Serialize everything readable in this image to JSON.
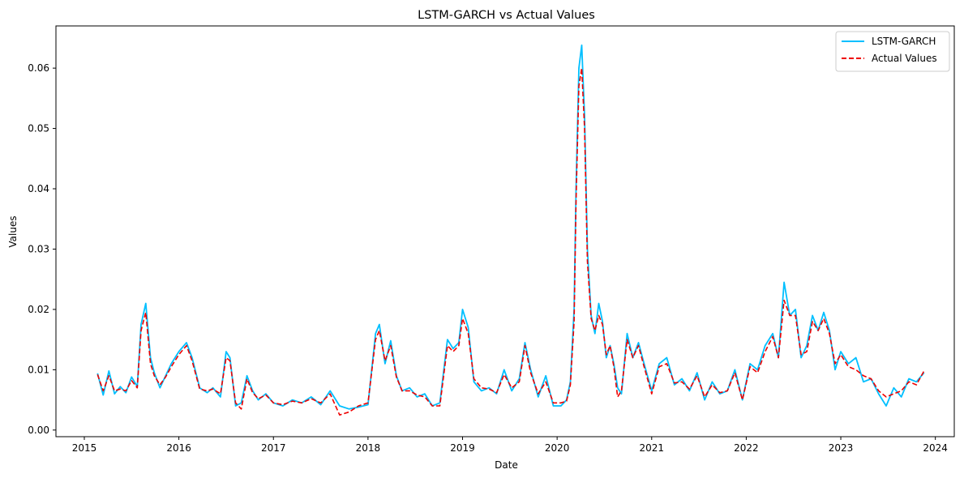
{
  "chart_data": {
    "type": "line",
    "title": "LSTM-GARCH vs Actual Values",
    "xlabel": "Date",
    "ylabel": "Values",
    "xlim": [
      2014.7,
      2024.2
    ],
    "ylim": [
      -0.0011,
      0.067
    ],
    "xticks": [
      2015,
      2016,
      2017,
      2018,
      2019,
      2020,
      2021,
      2022,
      2023,
      2024
    ],
    "xtick_labels": [
      "2015",
      "2016",
      "2017",
      "2018",
      "2019",
      "2020",
      "2021",
      "2022",
      "2023",
      "2024"
    ],
    "yticks": [
      0.0,
      0.01,
      0.02,
      0.03,
      0.04,
      0.05,
      0.06
    ],
    "ytick_labels": [
      "0.00",
      "0.01",
      "0.02",
      "0.03",
      "0.04",
      "0.05",
      "0.06"
    ],
    "legend_position": "top-right",
    "series": [
      {
        "name": "LSTM-GARCH",
        "color": "#00bfff",
        "style": "solid",
        "x": [
          2015.14,
          2015.2,
          2015.26,
          2015.32,
          2015.38,
          2015.44,
          2015.5,
          2015.56,
          2015.6,
          2015.65,
          2015.7,
          2015.74,
          2015.8,
          2015.86,
          2015.92,
          2016.0,
          2016.08,
          2016.14,
          2016.22,
          2016.3,
          2016.36,
          2016.44,
          2016.5,
          2016.54,
          2016.6,
          2016.66,
          2016.72,
          2016.78,
          2016.84,
          2016.92,
          2017.0,
          2017.1,
          2017.2,
          2017.3,
          2017.4,
          2017.5,
          2017.6,
          2017.7,
          2017.8,
          2017.9,
          2018.0,
          2018.08,
          2018.12,
          2018.18,
          2018.24,
          2018.3,
          2018.36,
          2018.44,
          2018.52,
          2018.6,
          2018.68,
          2018.76,
          2018.84,
          2018.9,
          2018.96,
          2019.0,
          2019.06,
          2019.12,
          2019.2,
          2019.28,
          2019.36,
          2019.44,
          2019.52,
          2019.6,
          2019.66,
          2019.72,
          2019.8,
          2019.88,
          2019.96,
          2020.04,
          2020.1,
          2020.14,
          2020.18,
          2020.2,
          2020.23,
          2020.26,
          2020.29,
          2020.32,
          2020.36,
          2020.4,
          2020.44,
          2020.48,
          2020.52,
          2020.56,
          2020.6,
          2020.64,
          2020.68,
          2020.74,
          2020.8,
          2020.86,
          2020.92,
          2021.0,
          2021.08,
          2021.16,
          2021.24,
          2021.32,
          2021.4,
          2021.48,
          2021.56,
          2021.64,
          2021.72,
          2021.8,
          2021.88,
          2021.96,
          2022.04,
          2022.12,
          2022.2,
          2022.28,
          2022.34,
          2022.4,
          2022.46,
          2022.52,
          2022.58,
          2022.64,
          2022.7,
          2022.76,
          2022.82,
          2022.88,
          2022.94,
          2023.0,
          2023.08,
          2023.16,
          2023.24,
          2023.32,
          2023.4,
          2023.48,
          2023.56,
          2023.64,
          2023.72,
          2023.8,
          2023.88
        ],
        "values": [
          0.0094,
          0.0058,
          0.0098,
          0.006,
          0.0072,
          0.0062,
          0.0088,
          0.0072,
          0.0175,
          0.021,
          0.012,
          0.0095,
          0.007,
          0.009,
          0.011,
          0.013,
          0.0145,
          0.012,
          0.007,
          0.0062,
          0.007,
          0.0055,
          0.013,
          0.012,
          0.004,
          0.0045,
          0.009,
          0.0065,
          0.005,
          0.006,
          0.0045,
          0.004,
          0.005,
          0.0045,
          0.0055,
          0.0042,
          0.0065,
          0.004,
          0.0035,
          0.0038,
          0.0042,
          0.016,
          0.0175,
          0.011,
          0.0148,
          0.009,
          0.0065,
          0.007,
          0.0055,
          0.006,
          0.004,
          0.0045,
          0.015,
          0.0135,
          0.0145,
          0.02,
          0.017,
          0.008,
          0.0065,
          0.007,
          0.006,
          0.01,
          0.0065,
          0.0085,
          0.0145,
          0.01,
          0.0055,
          0.009,
          0.004,
          0.004,
          0.005,
          0.008,
          0.02,
          0.04,
          0.06,
          0.0638,
          0.052,
          0.03,
          0.019,
          0.016,
          0.021,
          0.018,
          0.012,
          0.014,
          0.011,
          0.007,
          0.006,
          0.016,
          0.012,
          0.0145,
          0.011,
          0.0065,
          0.011,
          0.012,
          0.0075,
          0.0085,
          0.0065,
          0.0095,
          0.005,
          0.008,
          0.006,
          0.0065,
          0.01,
          0.005,
          0.011,
          0.01,
          0.014,
          0.016,
          0.012,
          0.0245,
          0.019,
          0.02,
          0.012,
          0.014,
          0.019,
          0.0165,
          0.0195,
          0.0165,
          0.01,
          0.013,
          0.011,
          0.012,
          0.008,
          0.0085,
          0.006,
          0.004,
          0.007,
          0.0055,
          0.0085,
          0.008,
          0.0095
        ]
      },
      {
        "name": "Actual Values",
        "color": "#ee0000",
        "style": "dashed",
        "x": [
          2015.14,
          2015.2,
          2015.26,
          2015.32,
          2015.38,
          2015.44,
          2015.5,
          2015.56,
          2015.6,
          2015.65,
          2015.7,
          2015.74,
          2015.8,
          2015.86,
          2015.92,
          2016.0,
          2016.08,
          2016.14,
          2016.22,
          2016.3,
          2016.36,
          2016.44,
          2016.5,
          2016.54,
          2016.6,
          2016.66,
          2016.72,
          2016.78,
          2016.84,
          2016.92,
          2017.0,
          2017.1,
          2017.2,
          2017.3,
          2017.4,
          2017.5,
          2017.6,
          2017.7,
          2017.8,
          2017.9,
          2018.0,
          2018.08,
          2018.12,
          2018.18,
          2018.24,
          2018.3,
          2018.36,
          2018.44,
          2018.52,
          2018.6,
          2018.68,
          2018.76,
          2018.84,
          2018.9,
          2018.96,
          2019.0,
          2019.06,
          2019.12,
          2019.2,
          2019.28,
          2019.36,
          2019.44,
          2019.52,
          2019.6,
          2019.66,
          2019.72,
          2019.8,
          2019.88,
          2019.96,
          2020.04,
          2020.1,
          2020.14,
          2020.18,
          2020.2,
          2020.23,
          2020.26,
          2020.29,
          2020.32,
          2020.36,
          2020.4,
          2020.44,
          2020.48,
          2020.52,
          2020.56,
          2020.6,
          2020.64,
          2020.68,
          2020.74,
          2020.8,
          2020.86,
          2020.92,
          2021.0,
          2021.08,
          2021.16,
          2021.24,
          2021.32,
          2021.4,
          2021.48,
          2021.56,
          2021.64,
          2021.72,
          2021.8,
          2021.88,
          2021.96,
          2022.04,
          2022.12,
          2022.2,
          2022.28,
          2022.34,
          2022.4,
          2022.46,
          2022.52,
          2022.58,
          2022.64,
          2022.7,
          2022.76,
          2022.82,
          2022.88,
          2022.94,
          2023.0,
          2023.08,
          2023.16,
          2023.24,
          2023.32,
          2023.4,
          2023.48,
          2023.56,
          2023.64,
          2023.72,
          2023.8,
          2023.88
        ],
        "values": [
          0.0092,
          0.0065,
          0.009,
          0.0065,
          0.0068,
          0.0065,
          0.0082,
          0.007,
          0.0165,
          0.0195,
          0.011,
          0.009,
          0.0075,
          0.0088,
          0.0105,
          0.0125,
          0.014,
          0.0115,
          0.0068,
          0.0065,
          0.0068,
          0.006,
          0.012,
          0.0115,
          0.0045,
          0.0035,
          0.0085,
          0.0062,
          0.0052,
          0.0058,
          0.0045,
          0.0042,
          0.0048,
          0.0045,
          0.0052,
          0.0045,
          0.006,
          0.0025,
          0.003,
          0.004,
          0.0045,
          0.015,
          0.0165,
          0.0115,
          0.014,
          0.0088,
          0.0065,
          0.0065,
          0.0058,
          0.0055,
          0.004,
          0.004,
          0.014,
          0.013,
          0.014,
          0.0185,
          0.016,
          0.0085,
          0.007,
          0.0068,
          0.0062,
          0.0092,
          0.007,
          0.008,
          0.014,
          0.0095,
          0.006,
          0.008,
          0.0045,
          0.0045,
          0.0048,
          0.0075,
          0.018,
          0.038,
          0.057,
          0.06,
          0.05,
          0.028,
          0.0185,
          0.0165,
          0.019,
          0.0175,
          0.0125,
          0.014,
          0.0105,
          0.0055,
          0.0065,
          0.015,
          0.012,
          0.014,
          0.0105,
          0.006,
          0.0105,
          0.011,
          0.0078,
          0.008,
          0.0068,
          0.009,
          0.0055,
          0.0075,
          0.0062,
          0.0065,
          0.0095,
          0.005,
          0.0105,
          0.0095,
          0.013,
          0.0155,
          0.012,
          0.0215,
          0.019,
          0.019,
          0.0125,
          0.013,
          0.018,
          0.0165,
          0.0185,
          0.016,
          0.011,
          0.0125,
          0.0105,
          0.01,
          0.009,
          0.0085,
          0.0065,
          0.0055,
          0.006,
          0.0065,
          0.008,
          0.0075,
          0.0098
        ]
      }
    ]
  }
}
